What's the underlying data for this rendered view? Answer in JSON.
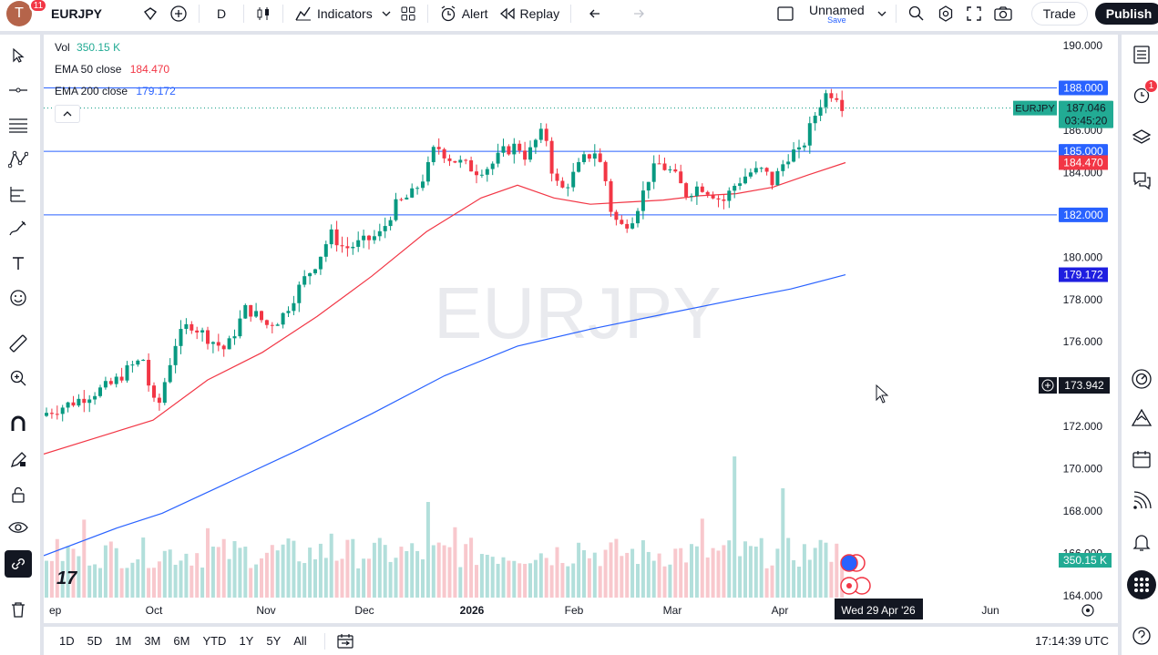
{
  "header": {
    "avatar_letter": "T",
    "avatar_badge": "11",
    "symbol": "EURJPY",
    "interval": "D",
    "indicators_label": "Indicators",
    "alert_label": "Alert",
    "replay_label": "Replay",
    "layout_name": "Unnamed",
    "layout_save": "Save",
    "trade_label": "Trade",
    "publish_label": "Publish"
  },
  "legend": {
    "vol_label": "Vol",
    "vol_value": "350.15 K",
    "ema50_label": "EMA 50 close",
    "ema50_value": "184.470",
    "ema200_label": "EMA 200 close",
    "ema200_value": "179.172"
  },
  "watermark": "EURJPY",
  "price_axis": {
    "ticks": [
      "190.000",
      "186.000",
      "184.000",
      "180.000",
      "178.000",
      "176.000",
      "172.000",
      "170.000",
      "168.000",
      "166.000",
      "164.000"
    ],
    "hline_labels": [
      "188.000",
      "185.000",
      "182.000"
    ],
    "symbol_tag": "EURJPY",
    "last_price": "187.046",
    "countdown": "03:45:20",
    "ema50_tag": "184.470",
    "ema200_tag": "179.172",
    "cursor_price": "173.942",
    "volume_tag": "350.15 K"
  },
  "time_axis": {
    "labels": [
      "ep",
      "Oct",
      "Nov",
      "Dec",
      "2026",
      "Feb",
      "Mar",
      "Apr",
      "Jun"
    ],
    "cursor_date": "Wed 29 Apr '26"
  },
  "right_sidebar": {
    "alerts_badge": "1"
  },
  "bottom": {
    "ranges": [
      "1D",
      "5D",
      "1M",
      "3M",
      "6M",
      "YTD",
      "1Y",
      "5Y",
      "All"
    ],
    "clock": "17:14:39 UTC"
  },
  "colors": {
    "up": "#089981",
    "down": "#f23645",
    "ema50": "#f23645",
    "ema200": "#2962ff",
    "hline": "#2962ff",
    "vol_up": "#b2dfdb",
    "vol_down": "#f8c8cd"
  },
  "chart_data": {
    "type": "candlestick",
    "symbol": "EURJPY",
    "interval": "D",
    "horizontal_levels": [
      188.0,
      185.0,
      182.0
    ],
    "last_price": 187.046,
    "ema50_last": 184.47,
    "ema200_last": 179.172,
    "volume_last": "350.15K",
    "ylim": [
      163.5,
      191.0
    ],
    "approx_closes_by_month": {
      "Sep": 172.8,
      "Oct": 176.5,
      "Nov": 178.5,
      "Dec": 182.5,
      "Jan": 183.7,
      "Feb": 182.3,
      "Mar": 183.0,
      "Apr": 187.0
    }
  }
}
